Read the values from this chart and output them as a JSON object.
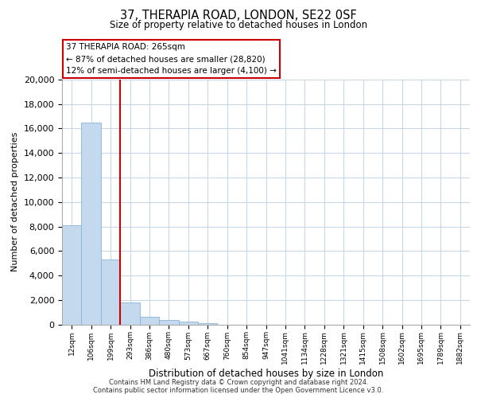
{
  "title": "37, THERAPIA ROAD, LONDON, SE22 0SF",
  "subtitle": "Size of property relative to detached houses in London",
  "xlabel": "Distribution of detached houses by size in London",
  "ylabel": "Number of detached properties",
  "bar_color": "#c5d9ee",
  "bar_edge_color": "#8ab4d8",
  "vline_color": "#cc0000",
  "categories": [
    "12sqm",
    "106sqm",
    "199sqm",
    "293sqm",
    "386sqm",
    "480sqm",
    "573sqm",
    "667sqm",
    "760sqm",
    "854sqm",
    "947sqm",
    "1041sqm",
    "1134sqm",
    "1228sqm",
    "1321sqm",
    "1415sqm",
    "1508sqm",
    "1602sqm",
    "1695sqm",
    "1789sqm",
    "1882sqm"
  ],
  "values": [
    8100,
    16500,
    5300,
    1800,
    650,
    330,
    230,
    130,
    0,
    0,
    0,
    0,
    0,
    0,
    0,
    0,
    0,
    0,
    0,
    0,
    0
  ],
  "ylim": [
    0,
    20000
  ],
  "yticks": [
    0,
    2000,
    4000,
    6000,
    8000,
    10000,
    12000,
    14000,
    16000,
    18000,
    20000
  ],
  "annotation_title": "37 THERAPIA ROAD: 265sqm",
  "annotation_line1": "← 87% of detached houses are smaller (28,820)",
  "annotation_line2": "12% of semi-detached houses are larger (4,100) →",
  "footer1": "Contains HM Land Registry data © Crown copyright and database right 2024.",
  "footer2": "Contains public sector information licensed under the Open Government Licence v3.0.",
  "bg_color": "#ffffff",
  "grid_color": "#c8d8e8"
}
